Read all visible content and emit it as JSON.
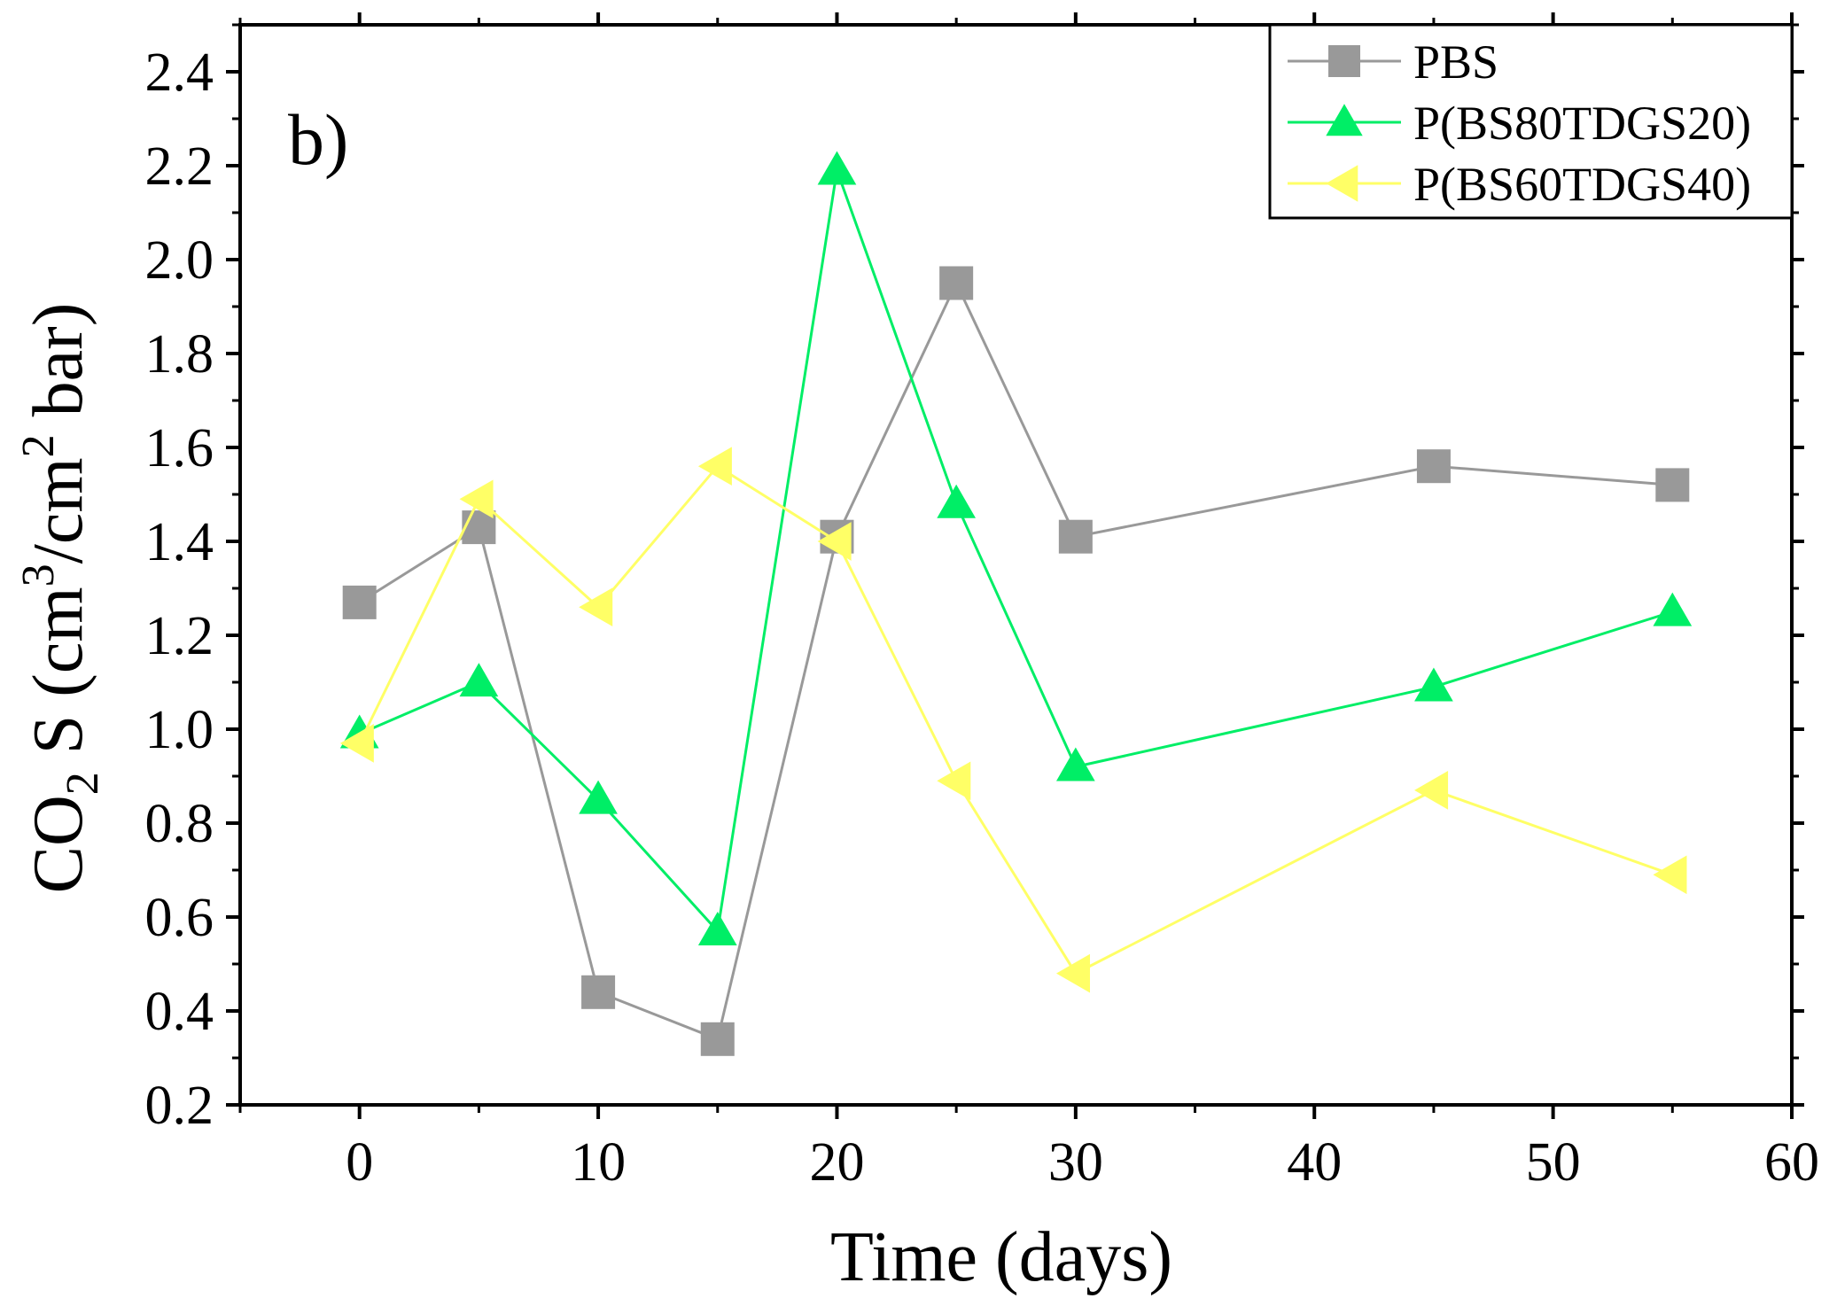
{
  "chart_data": {
    "type": "line",
    "panel_label": "b)",
    "xlabel": "Time (days)",
    "ylabel": {
      "prefix": "CO",
      "sub": "2",
      "mid": " S (cm",
      "sup1": "3",
      "mid2": "/cm",
      "sup2": "2",
      "suffix": " bar)"
    },
    "xlim": [
      -5,
      60
    ],
    "ylim": [
      0.2,
      2.5
    ],
    "xticks": [
      0,
      10,
      20,
      30,
      40,
      50,
      60
    ],
    "xtick_labels": [
      "0",
      "10",
      "20",
      "30",
      "40",
      "50",
      "60"
    ],
    "yticks": [
      0.2,
      0.4,
      0.6,
      0.8,
      1.0,
      1.2,
      1.4,
      1.6,
      1.8,
      2.0,
      2.2,
      2.4
    ],
    "ytick_labels": [
      "0.2",
      "0.4",
      "0.6",
      "0.8",
      "1.0",
      "1.2",
      "1.4",
      "1.6",
      "1.8",
      "2.0",
      "2.2",
      "2.4"
    ],
    "legend_position": "top-right",
    "series": [
      {
        "name": "PBS",
        "marker": "square",
        "color": "#999999",
        "line_color": "#999999",
        "x": [
          0,
          5,
          10,
          15,
          20,
          25,
          30,
          45,
          55
        ],
        "y": [
          1.27,
          1.43,
          0.44,
          0.34,
          1.41,
          1.95,
          1.41,
          1.56,
          1.52
        ]
      },
      {
        "name": "P(BS80TDGS20)",
        "marker": "triangle-up",
        "color": "#00ee66",
        "line_color": "#00ee66",
        "x": [
          0,
          5,
          10,
          15,
          20,
          25,
          30,
          45,
          55
        ],
        "y": [
          0.99,
          1.1,
          0.85,
          0.57,
          2.19,
          1.48,
          0.92,
          1.09,
          1.25
        ]
      },
      {
        "name": "P(BS60TDGS40)",
        "marker": "triangle-left",
        "color": "#ffff66",
        "line_color": "#ffff66",
        "x": [
          0,
          5,
          10,
          15,
          20,
          25,
          30,
          45,
          55
        ],
        "y": [
          0.97,
          1.49,
          1.26,
          1.56,
          1.4,
          0.89,
          0.48,
          0.87,
          0.69
        ]
      }
    ]
  }
}
